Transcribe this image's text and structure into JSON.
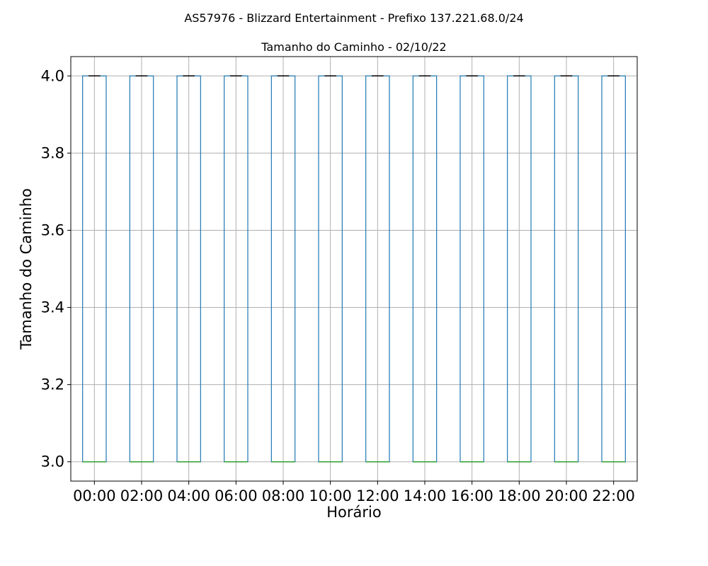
{
  "chart_data": {
    "type": "box",
    "suptitle": "AS57976 - Blizzard Entertainment - Prefixo 137.221.68.0/24",
    "title": "Tamanho do Caminho - 02/10/22",
    "xlabel": "Horário",
    "ylabel": "Tamanho do Caminho",
    "ylim": [
      2.95,
      4.05
    ],
    "yticks": [
      "3.0",
      "3.2",
      "3.4",
      "3.6",
      "3.8",
      "4.0"
    ],
    "grid": true,
    "categories": [
      "00:00",
      "02:00",
      "04:00",
      "06:00",
      "08:00",
      "10:00",
      "12:00",
      "14:00",
      "16:00",
      "18:00",
      "20:00",
      "22:00"
    ],
    "boxes": [
      {
        "min": 3.0,
        "q1": 3.0,
        "median": 3.0,
        "q3": 4.0,
        "max": 4.0
      },
      {
        "min": 3.0,
        "q1": 3.0,
        "median": 3.0,
        "q3": 4.0,
        "max": 4.0
      },
      {
        "min": 3.0,
        "q1": 3.0,
        "median": 3.0,
        "q3": 4.0,
        "max": 4.0
      },
      {
        "min": 3.0,
        "q1": 3.0,
        "median": 3.0,
        "q3": 4.0,
        "max": 4.0
      },
      {
        "min": 3.0,
        "q1": 3.0,
        "median": 3.0,
        "q3": 4.0,
        "max": 4.0
      },
      {
        "min": 3.0,
        "q1": 3.0,
        "median": 3.0,
        "q3": 4.0,
        "max": 4.0
      },
      {
        "min": 3.0,
        "q1": 3.0,
        "median": 3.0,
        "q3": 4.0,
        "max": 4.0
      },
      {
        "min": 3.0,
        "q1": 3.0,
        "median": 3.0,
        "q3": 4.0,
        "max": 4.0
      },
      {
        "min": 3.0,
        "q1": 3.0,
        "median": 3.0,
        "q3": 4.0,
        "max": 4.0
      },
      {
        "min": 3.0,
        "q1": 3.0,
        "median": 3.0,
        "q3": 4.0,
        "max": 4.0
      },
      {
        "min": 3.0,
        "q1": 3.0,
        "median": 3.0,
        "q3": 4.0,
        "max": 4.0
      },
      {
        "min": 3.0,
        "q1": 3.0,
        "median": 3.0,
        "q3": 4.0,
        "max": 4.0
      }
    ],
    "colors": {
      "box": "#1f77b4",
      "median": "#2ca02c",
      "whisker_cap": "#000000",
      "grid": "#b0b0b0"
    }
  }
}
